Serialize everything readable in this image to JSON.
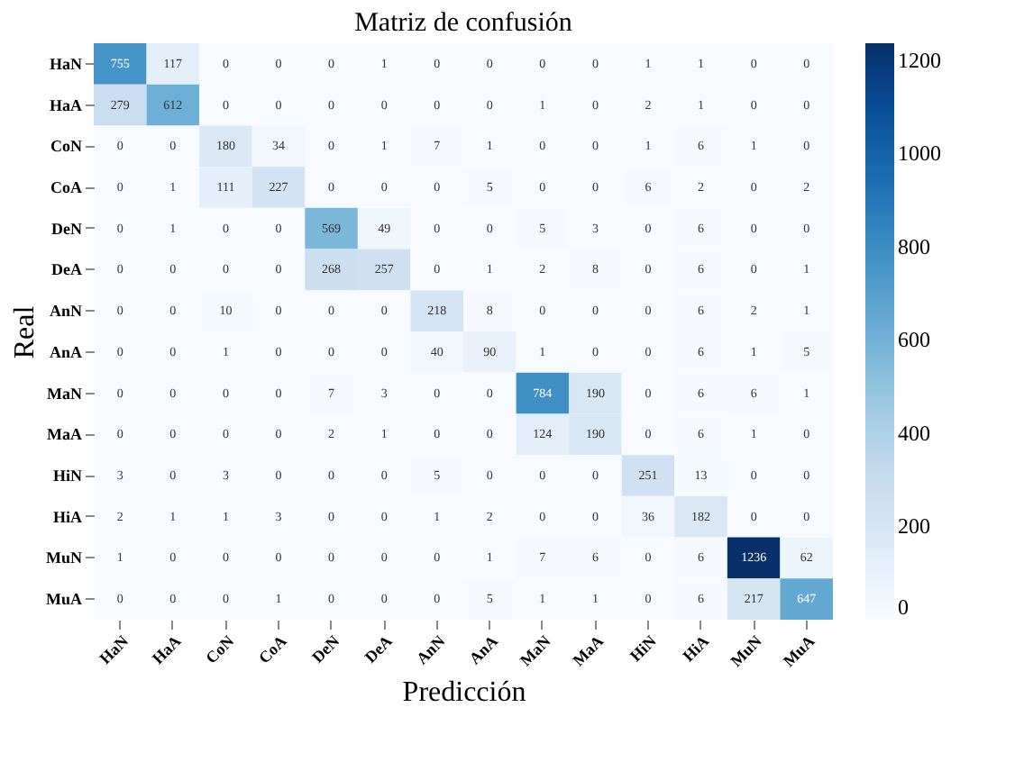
{
  "chart_data": {
    "type": "heatmap",
    "title": "Matriz de confusión",
    "xlabel": "Predicción",
    "ylabel": "Real",
    "categories": [
      "HaN",
      "HaA",
      "CoN",
      "CoA",
      "DeN",
      "DeA",
      "AnN",
      "AnA",
      "MaN",
      "MaA",
      "HiN",
      "HiA",
      "MuN",
      "MuA"
    ],
    "y_categories": [
      "HaN",
      "HaA",
      "CoN",
      "CoA",
      "DeN",
      "DeA",
      "AnN",
      "AnA",
      "MaN",
      "MaA",
      "HiN",
      "HiA",
      "MuN",
      "MuA"
    ],
    "cells": [
      [
        755,
        117,
        0,
        0,
        0,
        1,
        0,
        0,
        0,
        0,
        1,
        1,
        0,
        0
      ],
      [
        279,
        612,
        0,
        0,
        0,
        0,
        0,
        0,
        1,
        0,
        2,
        1,
        0,
        0
      ],
      [
        0,
        0,
        180,
        34,
        0,
        1,
        7,
        1,
        0,
        0,
        1,
        6,
        1,
        0
      ],
      [
        0,
        1,
        111,
        227,
        0,
        0,
        0,
        5,
        0,
        0,
        6,
        2,
        0,
        2
      ],
      [
        0,
        1,
        0,
        0,
        569,
        49,
        0,
        0,
        5,
        3,
        0,
        6,
        0,
        0
      ],
      [
        0,
        0,
        0,
        0,
        268,
        257,
        0,
        1,
        2,
        8,
        0,
        6,
        0,
        1
      ],
      [
        0,
        0,
        10,
        0,
        0,
        0,
        218,
        8,
        0,
        0,
        0,
        6,
        2,
        1
      ],
      [
        0,
        0,
        1,
        0,
        0,
        0,
        40,
        90,
        1,
        0,
        0,
        6,
        1,
        5
      ],
      [
        0,
        0,
        0,
        0,
        7,
        3,
        0,
        0,
        784,
        190,
        0,
        6,
        6,
        1
      ],
      [
        0,
        0,
        0,
        0,
        2,
        1,
        0,
        0,
        124,
        190,
        0,
        6,
        1,
        0
      ],
      [
        3,
        0,
        3,
        0,
        0,
        0,
        5,
        0,
        0,
        0,
        251,
        13,
        0,
        0
      ],
      [
        2,
        1,
        1,
        3,
        0,
        0,
        1,
        2,
        0,
        0,
        36,
        182,
        0,
        0
      ],
      [
        1,
        0,
        0,
        0,
        0,
        0,
        0,
        1,
        7,
        6,
        0,
        6,
        1236,
        62
      ],
      [
        0,
        0,
        0,
        1,
        0,
        0,
        0,
        5,
        1,
        1,
        0,
        6,
        217,
        647
      ]
    ],
    "clim": [
      0,
      1236
    ],
    "cticks": [
      0,
      200,
      400,
      600,
      800,
      1000,
      1200
    ],
    "data_labels": true
  }
}
